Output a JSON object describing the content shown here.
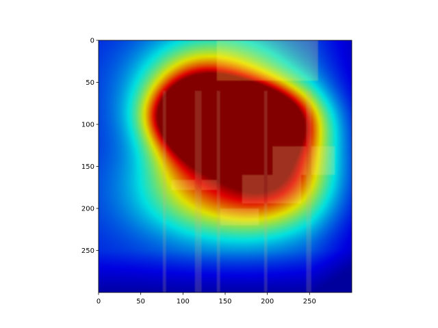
{
  "chart_data": {
    "type": "heatmap",
    "title": "",
    "xlabel": "",
    "ylabel": "",
    "xlim": [
      0,
      300
    ],
    "ylim": [
      300,
      0
    ],
    "x_ticks": [
      0,
      50,
      100,
      150,
      200,
      250
    ],
    "y_ticks": [
      0,
      50,
      100,
      150,
      200,
      250
    ],
    "colormap": "jet",
    "overlay": "grad-cam style saliency heatmap over photo of brooms and mops hanging on a wall",
    "hotspots": [
      {
        "x": 140,
        "y": 90,
        "sx": 42,
        "sy": 22,
        "intensity": 1.0
      },
      {
        "x": 185,
        "y": 95,
        "sx": 45,
        "sy": 26,
        "intensity": 0.95
      },
      {
        "x": 115,
        "y": 100,
        "sx": 35,
        "sy": 40,
        "intensity": 0.8
      },
      {
        "x": 210,
        "y": 140,
        "sx": 45,
        "sy": 45,
        "intensity": 0.65
      },
      {
        "x": 150,
        "y": 180,
        "sx": 70,
        "sy": 40,
        "intensity": 0.55
      },
      {
        "x": 140,
        "y": 60,
        "sx": 60,
        "sy": 45,
        "intensity": 0.6
      }
    ],
    "objects": {
      "panel_color": "#c9b33f",
      "handle_color": "#8a7a5a",
      "mop_color": "#b5a266"
    }
  }
}
